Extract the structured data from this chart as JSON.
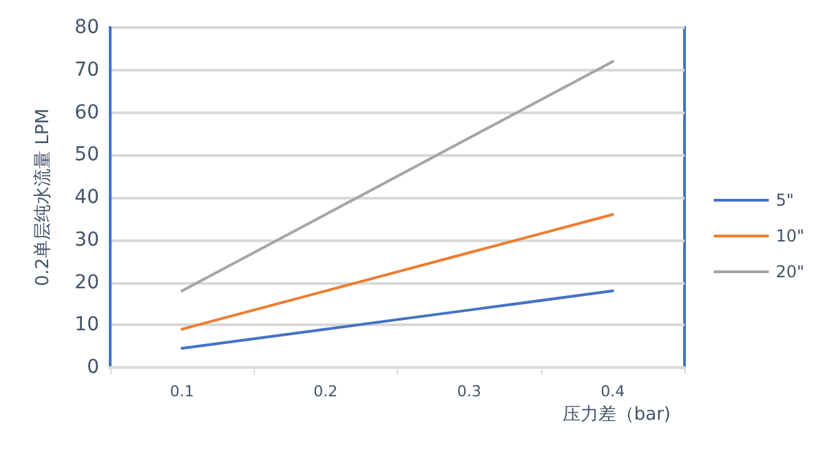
{
  "chart_data": {
    "type": "line",
    "xlabel": "压力差（bar)",
    "ylabel": "0.2单层纯水流量 LPM",
    "categories": [
      "0.1",
      "0.2",
      "0.3",
      "0.4"
    ],
    "series": [
      {
        "name": "5\"",
        "color": "#4472c4",
        "values": [
          4.5,
          9,
          13.5,
          18
        ]
      },
      {
        "name": "10\"",
        "color": "#ed7d31",
        "values": [
          9,
          18,
          27,
          36
        ]
      },
      {
        "name": "20\"",
        "color": "#a5a5a5",
        "values": [
          18,
          36,
          54,
          72
        ]
      }
    ],
    "ylim": [
      0,
      80
    ],
    "yticks": [
      0,
      10,
      20,
      30,
      40,
      50,
      60,
      70,
      80
    ],
    "grid": "y",
    "legend": "right",
    "marker": "none",
    "line_style": "solid"
  }
}
